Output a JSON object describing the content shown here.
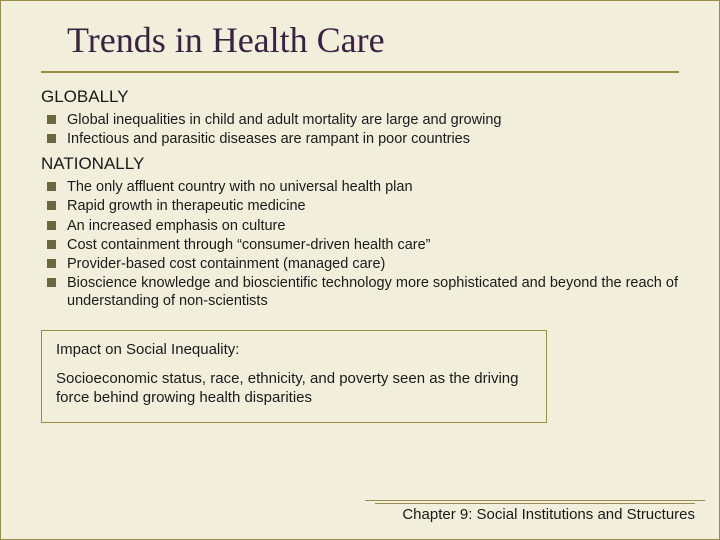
{
  "colors": {
    "background": "#f1efdc",
    "border": "#998d4a",
    "title": "#3a2340",
    "text": "#1a1a1a",
    "bullet": "#6a683f"
  },
  "typography": {
    "title_font": "Times New Roman",
    "title_size_pt": 27,
    "body_font": "Arial",
    "heading_size_pt": 13,
    "bullet_size_pt": 11,
    "impact_size_pt": 11,
    "footer_size_pt": 11
  },
  "title": "Trends in Health Care",
  "sections": [
    {
      "heading": "GLOBALLY",
      "items": [
        "Global inequalities in child and adult mortality are large and growing",
        "Infectious and parasitic diseases are rampant in poor countries"
      ]
    },
    {
      "heading": "NATIONALLY",
      "items": [
        "The only affluent country with no universal health plan",
        "Rapid growth in therapeutic medicine",
        "An increased emphasis on culture",
        "Cost containment through “consumer-driven health care”",
        "Provider-based cost containment (managed care)",
        "Bioscience knowledge and bioscientific technology more sophisticated and beyond the reach of understanding of non-scientists"
      ]
    }
  ],
  "impact": {
    "heading": "Impact on Social Inequality:",
    "body": "Socioeconomic status, race, ethnicity, and poverty seen as the driving force behind growing health disparities"
  },
  "footer": "Chapter 9: Social Institutions and Structures"
}
